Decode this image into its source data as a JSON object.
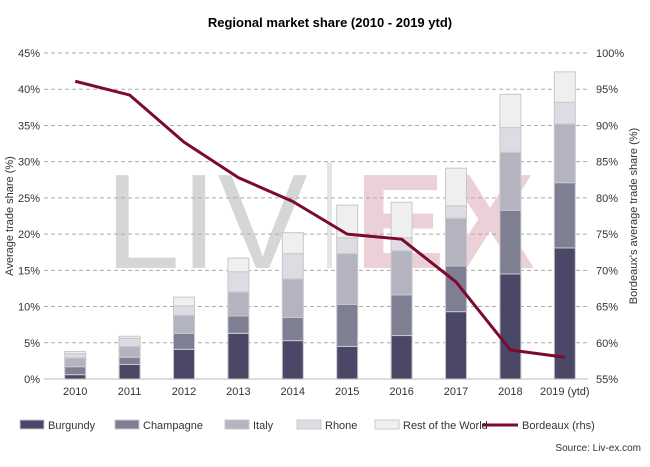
{
  "chart_data": {
    "type": "bar",
    "stacked": true,
    "title": "Regional market share (2010 - 2019 ytd)",
    "ylabel": "Average trade share (%)",
    "y2label": "Bordeaux's average trade share (%)",
    "ylim": [
      0,
      45
    ],
    "y2lim": [
      55,
      100
    ],
    "yticks": [
      "0%",
      "5%",
      "10%",
      "15%",
      "20%",
      "25%",
      "30%",
      "35%",
      "40%",
      "45%"
    ],
    "y2ticks": [
      "55%",
      "60%",
      "65%",
      "70%",
      "75%",
      "80%",
      "85%",
      "90%",
      "95%",
      "100%"
    ],
    "grid": true,
    "legend_position": "bottom",
    "categories": [
      "2010",
      "2011",
      "2012",
      "2013",
      "2014",
      "2015",
      "2016",
      "2017",
      "2018",
      "2019 (ytd)"
    ],
    "series": [
      {
        "name": "Burgundy",
        "color": "#4a4866",
        "values": [
          0.6,
          2.0,
          4.1,
          6.3,
          5.3,
          4.5,
          6.0,
          9.3,
          14.5,
          18.1
        ]
      },
      {
        "name": "Champagne",
        "color": "#7f7f93",
        "values": [
          1.1,
          1.0,
          2.2,
          2.4,
          3.2,
          5.8,
          5.6,
          6.3,
          8.8,
          9.0
        ]
      },
      {
        "name": "Italy",
        "color": "#b4b4c1",
        "values": [
          1.2,
          1.5,
          2.5,
          3.3,
          5.3,
          7.0,
          6.1,
          6.6,
          8.0,
          8.1
        ]
      },
      {
        "name": "Rhone",
        "color": "#dcdce2",
        "values": [
          0.6,
          1.1,
          1.3,
          2.8,
          3.5,
          2.2,
          1.8,
          1.7,
          3.4,
          3.0
        ]
      },
      {
        "name": "Rest of the World",
        "color": "#efefef",
        "values": [
          0.3,
          0.3,
          1.2,
          1.9,
          2.9,
          4.5,
          4.9,
          5.2,
          4.6,
          4.2
        ]
      }
    ],
    "line_series": {
      "name": "Bordeaux (rhs)",
      "color": "#7b0a2e",
      "axis": "right",
      "values": [
        96.1,
        94.2,
        87.7,
        82.8,
        79.5,
        75.0,
        74.3,
        68.4,
        59.0,
        58.0
      ]
    },
    "source": "Source: Liv-ex.com",
    "watermark": {
      "left": "LIV",
      "right": "EX"
    }
  }
}
